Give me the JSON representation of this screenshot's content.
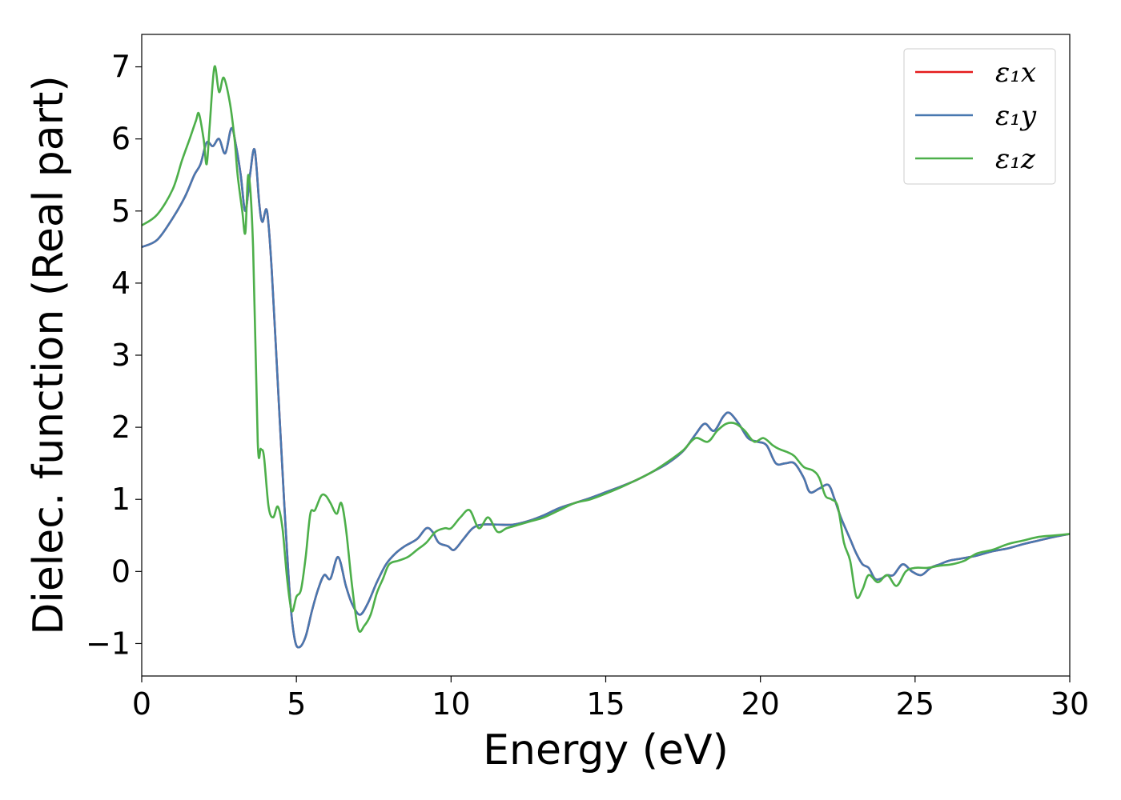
{
  "chart_data": {
    "type": "line",
    "title": "",
    "xlabel": "Energy (eV)",
    "ylabel": "Dielec. function (Real part)",
    "xlim": [
      0,
      30
    ],
    "ylim": [
      -1.45,
      7.45
    ],
    "xticks": [
      0,
      5,
      10,
      15,
      20,
      25,
      30
    ],
    "xtick_labels": [
      "0",
      "5",
      "10",
      "15",
      "20",
      "25",
      "30"
    ],
    "yticks": [
      -1,
      0,
      1,
      2,
      3,
      4,
      5,
      6,
      7
    ],
    "ytick_labels": [
      "−1",
      "0",
      "1",
      "2",
      "3",
      "4",
      "5",
      "6",
      "7"
    ],
    "grid": false,
    "legend_position": "top-right",
    "series": [
      {
        "name": "ε₁x",
        "color": "#e41a1c",
        "x": [
          0,
          0.5,
          1.0,
          1.4,
          1.7,
          1.9,
          2.1,
          2.3,
          2.5,
          2.7,
          2.9,
          3.05,
          3.2,
          3.35,
          3.5,
          3.65,
          3.8,
          3.9,
          4.05,
          4.2,
          4.4,
          4.6,
          4.8,
          4.95,
          5.1,
          5.3,
          5.5,
          5.7,
          5.9,
          6.1,
          6.35,
          6.6,
          6.8,
          7.05,
          7.3,
          7.6,
          7.9,
          8.2,
          8.5,
          8.9,
          9.2,
          9.4,
          9.6,
          9.9,
          10.1,
          10.4,
          10.7,
          11.0,
          11.5,
          12.0,
          12.5,
          13.0,
          13.5,
          14.0,
          14.5,
          15.0,
          15.5,
          16.0,
          16.5,
          17.0,
          17.5,
          17.9,
          18.2,
          18.5,
          18.8,
          19.0,
          19.3,
          19.6,
          19.9,
          20.2,
          20.5,
          20.8,
          21.1,
          21.4,
          21.6,
          21.9,
          22.2,
          22.4,
          22.6,
          22.9,
          23.1,
          23.3,
          23.5,
          23.7,
          23.9,
          24.1,
          24.3,
          24.6,
          24.9,
          25.2,
          25.5,
          25.8,
          26.1,
          26.5,
          27.0,
          27.5,
          28.0,
          28.5,
          29.0,
          29.5,
          30.0
        ],
        "y": [
          4.5,
          4.6,
          4.9,
          5.2,
          5.5,
          5.65,
          5.95,
          5.9,
          6.0,
          5.8,
          6.15,
          5.9,
          5.5,
          5.0,
          5.5,
          5.85,
          5.1,
          4.85,
          5.0,
          4.2,
          2.6,
          1.0,
          -0.4,
          -0.95,
          -1.05,
          -0.9,
          -0.55,
          -0.25,
          -0.05,
          -0.1,
          0.2,
          -0.2,
          -0.45,
          -0.6,
          -0.45,
          -0.15,
          0.1,
          0.25,
          0.35,
          0.45,
          0.6,
          0.55,
          0.4,
          0.35,
          0.3,
          0.45,
          0.6,
          0.65,
          0.65,
          0.65,
          0.7,
          0.78,
          0.88,
          0.95,
          1.02,
          1.1,
          1.18,
          1.27,
          1.38,
          1.5,
          1.67,
          1.9,
          2.05,
          1.95,
          2.15,
          2.2,
          2.05,
          1.85,
          1.8,
          1.75,
          1.5,
          1.5,
          1.5,
          1.3,
          1.1,
          1.15,
          1.2,
          1.0,
          0.75,
          0.45,
          0.25,
          0.1,
          0.05,
          -0.1,
          -0.1,
          -0.05,
          -0.05,
          0.1,
          0.0,
          -0.05,
          0.05,
          0.1,
          0.15,
          0.18,
          0.22,
          0.28,
          0.32,
          0.38,
          0.43,
          0.48,
          0.52
        ]
      },
      {
        "name": "ε₁y",
        "color": "#4878b0",
        "x": [
          0,
          0.5,
          1.0,
          1.4,
          1.7,
          1.9,
          2.1,
          2.3,
          2.5,
          2.7,
          2.9,
          3.05,
          3.2,
          3.35,
          3.5,
          3.65,
          3.8,
          3.9,
          4.05,
          4.2,
          4.4,
          4.6,
          4.8,
          4.95,
          5.1,
          5.3,
          5.5,
          5.7,
          5.9,
          6.1,
          6.35,
          6.6,
          6.8,
          7.05,
          7.3,
          7.6,
          7.9,
          8.2,
          8.5,
          8.9,
          9.2,
          9.4,
          9.6,
          9.9,
          10.1,
          10.4,
          10.7,
          11.0,
          11.5,
          12.0,
          12.5,
          13.0,
          13.5,
          14.0,
          14.5,
          15.0,
          15.5,
          16.0,
          16.5,
          17.0,
          17.5,
          17.9,
          18.2,
          18.5,
          18.8,
          19.0,
          19.3,
          19.6,
          19.9,
          20.2,
          20.5,
          20.8,
          21.1,
          21.4,
          21.6,
          21.9,
          22.2,
          22.4,
          22.6,
          22.9,
          23.1,
          23.3,
          23.5,
          23.7,
          23.9,
          24.1,
          24.3,
          24.6,
          24.9,
          25.2,
          25.5,
          25.8,
          26.1,
          26.5,
          27.0,
          27.5,
          28.0,
          28.5,
          29.0,
          29.5,
          30.0
        ],
        "y": [
          4.5,
          4.6,
          4.9,
          5.2,
          5.5,
          5.65,
          5.95,
          5.9,
          6.0,
          5.8,
          6.15,
          5.9,
          5.5,
          5.0,
          5.5,
          5.85,
          5.1,
          4.85,
          5.0,
          4.2,
          2.6,
          1.0,
          -0.4,
          -0.95,
          -1.05,
          -0.9,
          -0.55,
          -0.25,
          -0.05,
          -0.1,
          0.2,
          -0.2,
          -0.45,
          -0.6,
          -0.45,
          -0.15,
          0.1,
          0.25,
          0.35,
          0.45,
          0.6,
          0.55,
          0.4,
          0.35,
          0.3,
          0.45,
          0.6,
          0.65,
          0.65,
          0.65,
          0.7,
          0.78,
          0.88,
          0.95,
          1.02,
          1.1,
          1.18,
          1.27,
          1.38,
          1.5,
          1.67,
          1.9,
          2.05,
          1.95,
          2.15,
          2.2,
          2.05,
          1.85,
          1.8,
          1.75,
          1.5,
          1.5,
          1.5,
          1.3,
          1.1,
          1.15,
          1.2,
          1.0,
          0.75,
          0.45,
          0.25,
          0.1,
          0.05,
          -0.1,
          -0.1,
          -0.05,
          -0.05,
          0.1,
          0.0,
          -0.05,
          0.05,
          0.1,
          0.15,
          0.18,
          0.22,
          0.28,
          0.32,
          0.38,
          0.43,
          0.48,
          0.52
        ]
      },
      {
        "name": "ε₁z",
        "color": "#4daf4a",
        "x": [
          0,
          0.5,
          1.0,
          1.3,
          1.55,
          1.75,
          1.85,
          2.0,
          2.1,
          2.2,
          2.35,
          2.5,
          2.65,
          2.85,
          3.0,
          3.1,
          3.25,
          3.35,
          3.45,
          3.6,
          3.75,
          3.85,
          3.95,
          4.1,
          4.25,
          4.4,
          4.55,
          4.7,
          4.85,
          5.0,
          5.15,
          5.3,
          5.45,
          5.6,
          5.8,
          5.95,
          6.1,
          6.3,
          6.45,
          6.6,
          6.8,
          7.0,
          7.2,
          7.4,
          7.6,
          7.8,
          8.0,
          8.3,
          8.6,
          8.9,
          9.2,
          9.5,
          9.8,
          10.0,
          10.3,
          10.6,
          10.9,
          11.2,
          11.5,
          11.8,
          12.2,
          12.6,
          13.0,
          13.5,
          14.0,
          14.5,
          15.0,
          15.5,
          16.0,
          16.5,
          17.0,
          17.5,
          17.9,
          18.3,
          18.6,
          18.9,
          19.2,
          19.5,
          19.8,
          20.1,
          20.4,
          20.6,
          20.9,
          21.1,
          21.4,
          21.7,
          21.9,
          22.1,
          22.3,
          22.5,
          22.7,
          22.9,
          23.1,
          23.3,
          23.5,
          23.8,
          24.1,
          24.4,
          24.7,
          25.0,
          25.4,
          25.8,
          26.2,
          26.6,
          27.0,
          27.5,
          28.0,
          28.5,
          29.0,
          29.5,
          30.0
        ],
        "y": [
          4.8,
          4.95,
          5.3,
          5.7,
          6.0,
          6.25,
          6.35,
          6.0,
          5.65,
          6.2,
          7.0,
          6.65,
          6.85,
          6.5,
          6.0,
          5.5,
          5.0,
          4.7,
          5.5,
          4.5,
          1.8,
          1.7,
          1.6,
          0.9,
          0.75,
          0.9,
          0.6,
          -0.1,
          -0.55,
          -0.35,
          -0.25,
          0.2,
          0.8,
          0.85,
          1.05,
          1.05,
          0.95,
          0.8,
          0.95,
          0.6,
          -0.2,
          -0.8,
          -0.75,
          -0.6,
          -0.3,
          -0.1,
          0.1,
          0.15,
          0.2,
          0.3,
          0.4,
          0.55,
          0.6,
          0.6,
          0.75,
          0.85,
          0.6,
          0.75,
          0.55,
          0.6,
          0.65,
          0.7,
          0.75,
          0.85,
          0.95,
          1.0,
          1.08,
          1.17,
          1.27,
          1.38,
          1.52,
          1.68,
          1.85,
          1.8,
          1.95,
          2.05,
          2.05,
          1.95,
          1.8,
          1.85,
          1.75,
          1.7,
          1.65,
          1.6,
          1.45,
          1.4,
          1.3,
          1.05,
          1.0,
          0.9,
          0.4,
          0.15,
          -0.35,
          -0.25,
          -0.05,
          -0.15,
          -0.05,
          -0.2,
          0.0,
          0.05,
          0.05,
          0.08,
          0.1,
          0.15,
          0.25,
          0.3,
          0.38,
          0.43,
          0.48,
          0.5,
          0.52
        ]
      }
    ]
  }
}
